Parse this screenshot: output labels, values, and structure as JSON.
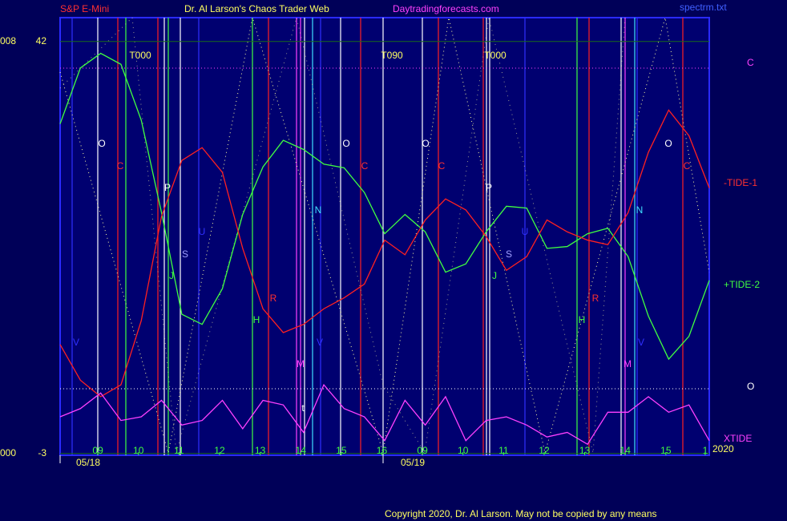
{
  "chart_data": {
    "type": "line",
    "header": [
      "S&P E-Mini",
      "Dr. Al Larson's Chaos Trader Web",
      "Daytradingforecasts.com",
      "spectrm.txt"
    ],
    "left_labels": [
      "008",
      "000"
    ],
    "right_labels": [
      "C",
      "-TIDE-1",
      "+TIDE-2",
      "O",
      "XTIDE"
    ],
    "dates": [
      "05/18",
      "05/19",
      "2020"
    ],
    "copyright": "Copyright 2020, Dr. Al Larson. May not be copied by any means",
    "annotations": [
      "O",
      "C",
      "P",
      "S",
      "U",
      "J",
      "H",
      "R",
      "M",
      "N",
      "V",
      "t",
      "O",
      "C",
      "O",
      "C",
      "P",
      "S",
      "U",
      "J",
      "H",
      "R",
      "M",
      "N",
      "V",
      "O",
      "C",
      "V",
      "T000",
      "T090",
      "T000"
    ],
    "xlim": [
      0,
      16
    ],
    "xticks": [
      {
        "value": 0.93,
        "label": "09"
      },
      {
        "value": 1.93,
        "label": "10"
      },
      {
        "value": 2.93,
        "label": "11"
      },
      {
        "value": 3.93,
        "label": "12"
      },
      {
        "value": 4.93,
        "label": "13"
      },
      {
        "value": 5.93,
        "label": "14"
      },
      {
        "value": 6.93,
        "label": "15"
      },
      {
        "value": 7.93,
        "label": "16"
      },
      {
        "value": 8.93,
        "label": "09"
      },
      {
        "value": 9.93,
        "label": "10"
      },
      {
        "value": 10.93,
        "label": "11"
      },
      {
        "value": 11.93,
        "label": "12"
      },
      {
        "value": 12.93,
        "label": "13"
      },
      {
        "value": 13.93,
        "label": "14"
      },
      {
        "value": 14.93,
        "label": "15"
      },
      {
        "value": 15.9,
        "label": "1"
      }
    ],
    "ylim": [
      -3.2,
      44.6
    ],
    "yticks": [
      -3,
      42
    ],
    "x": [
      0,
      0.5,
      1,
      1.5,
      2,
      2.5,
      3,
      3.5,
      4,
      4.5,
      5,
      5.5,
      6,
      6.5,
      7,
      7.5,
      8,
      8.5,
      9,
      9.5,
      10,
      10.5,
      11,
      11.5,
      12,
      12.5,
      13,
      13.5,
      14,
      14.5,
      15,
      15.5,
      16
    ],
    "series": [
      {
        "name": "+TIDE-2",
        "color": "#40ff40",
        "values": [
          33.0,
          39.1,
          40.7,
          39.5,
          33.4,
          23.3,
          12.2,
          11.1,
          15.0,
          23.1,
          28.3,
          31.2,
          30.2,
          28.6,
          28.2,
          25.5,
          21.0,
          23.1,
          21.2,
          16.8,
          17.7,
          21.2,
          24.0,
          23.8,
          19.4,
          19.6,
          21.0,
          21.6,
          18.5,
          12.0,
          7.3,
          9.8,
          15.9
        ]
      },
      {
        "name": "-TIDE-1",
        "color": "#ff2020",
        "values": [
          8.9,
          5.0,
          3.2,
          4.5,
          11.5,
          22.9,
          29.0,
          30.4,
          27.7,
          19.4,
          12.8,
          10.2,
          11.1,
          12.8,
          14.0,
          15.5,
          20.3,
          18.7,
          22.5,
          24.8,
          23.6,
          20.7,
          17.0,
          18.5,
          22.5,
          21.2,
          20.3,
          19.8,
          23.3,
          29.9,
          34.5,
          31.7,
          26.0
        ]
      },
      {
        "name": "XTIDE",
        "color": "#ff40ff",
        "values": [
          1.0,
          1.9,
          3.6,
          0.6,
          1.0,
          2.8,
          0.1,
          0.6,
          2.8,
          -0.3,
          2.8,
          2.3,
          -0.7,
          4.5,
          1.9,
          1.0,
          -1.6,
          2.8,
          0.1,
          3.2,
          -1.6,
          0.6,
          1.0,
          0.1,
          -1.2,
          -0.7,
          -2.0,
          1.5,
          1.5,
          3.2,
          1.5,
          2.3,
          -1.6
        ]
      }
    ]
  }
}
